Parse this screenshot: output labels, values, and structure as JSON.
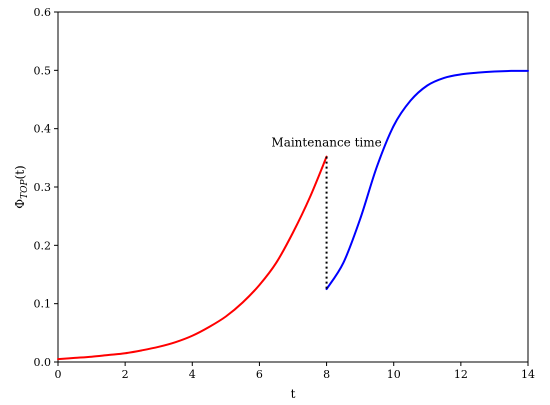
{
  "chart_data": {
    "type": "line",
    "title": "",
    "xlabel": "t",
    "ylabel_main": "Φ",
    "ylabel_sub": "TOP",
    "ylabel_tail": "(t)",
    "xlim": [
      0,
      14
    ],
    "ylim": [
      0,
      0.6
    ],
    "x_ticks": [
      0,
      2,
      4,
      6,
      8,
      10,
      12,
      14
    ],
    "x_tick_labels": [
      "0",
      "2",
      "4",
      "6",
      "8",
      "10",
      "12",
      "14"
    ],
    "y_ticks": [
      0.0,
      0.1,
      0.2,
      0.3,
      0.4,
      0.5,
      0.6
    ],
    "y_tick_labels": [
      "0.0",
      "0.1",
      "0.2",
      "0.3",
      "0.4",
      "0.5",
      "0.6"
    ],
    "grid": false,
    "legend": "none",
    "series": [
      {
        "color": "#ff0000",
        "x": [
          0,
          0.5,
          1,
          1.5,
          2,
          2.5,
          3,
          3.5,
          4,
          4.5,
          5,
          5.5,
          6,
          6.5,
          7,
          7.5,
          8
        ],
        "y": [
          0.005,
          0.007,
          0.009,
          0.012,
          0.015,
          0.02,
          0.026,
          0.034,
          0.045,
          0.06,
          0.078,
          0.102,
          0.132,
          0.17,
          0.222,
          0.282,
          0.352
        ]
      },
      {
        "color": "#0000ff",
        "x": [
          8,
          8.5,
          9,
          9.5,
          10,
          10.5,
          11,
          11.5,
          12,
          12.5,
          13,
          13.5,
          14
        ],
        "y": [
          0.125,
          0.17,
          0.245,
          0.335,
          0.405,
          0.448,
          0.474,
          0.487,
          0.493,
          0.496,
          0.498,
          0.499,
          0.499
        ]
      }
    ],
    "annotation": {
      "text": "Maintenance time",
      "x": 8,
      "y_top": 0.352,
      "y_bottom": 0.125
    }
  }
}
